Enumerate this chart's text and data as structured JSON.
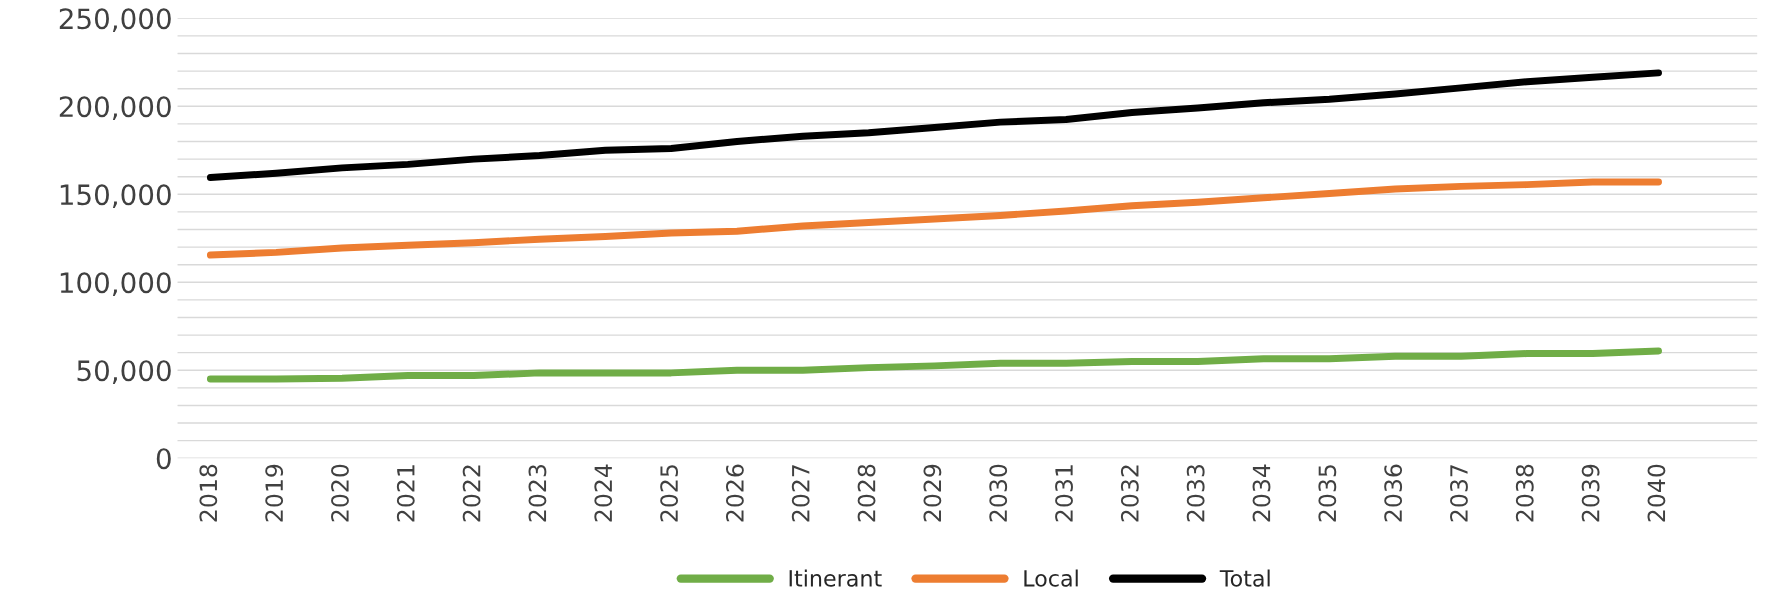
{
  "chart_data": {
    "type": "line",
    "categories": [
      "2018",
      "2019",
      "2020",
      "2021",
      "2022",
      "2023",
      "2024",
      "2025",
      "2026",
      "2027",
      "2028",
      "2029",
      "2030",
      "2031",
      "2032",
      "2033",
      "2034",
      "2035",
      "2036",
      "2037",
      "2038",
      "2039",
      "2040"
    ],
    "series": [
      {
        "name": "Itinerant",
        "color": "#70ad47",
        "values": [
          45000,
          45000,
          45500,
          47000,
          47000,
          48500,
          48500,
          48500,
          50000,
          50000,
          51500,
          52500,
          54000,
          54000,
          55000,
          55000,
          56500,
          56500,
          58000,
          58000,
          59500,
          59500,
          61000
        ]
      },
      {
        "name": "Local",
        "color": "#ed7d31",
        "values": [
          115500,
          117000,
          119500,
          121000,
          122500,
          124500,
          126000,
          128000,
          129000,
          132000,
          134000,
          136000,
          138000,
          140500,
          143500,
          145500,
          148000,
          150500,
          153000,
          154500,
          155500,
          157000,
          157000
        ]
      },
      {
        "name": "Total",
        "color": "#000000",
        "values": [
          159500,
          162000,
          165000,
          167000,
          170000,
          172000,
          175000,
          176000,
          180000,
          183000,
          185000,
          188000,
          191000,
          192500,
          196500,
          199000,
          202000,
          204000,
          207000,
          210500,
          214000,
          216500,
          219000
        ]
      }
    ],
    "ylim": [
      0,
      250000
    ],
    "yticks": [
      0,
      {
        "value": 10000,
        "label": null
      },
      {
        "value": 20000,
        "label": null
      },
      {
        "value": 30000,
        "label": null
      },
      {
        "value": 40000,
        "label": null
      },
      {
        "value": 50000,
        "label": "50,000"
      },
      {
        "value": 60000,
        "label": null
      },
      {
        "value": 70000,
        "label": null
      },
      {
        "value": 80000,
        "label": null
      },
      {
        "value": 90000,
        "label": null
      },
      {
        "value": 100000,
        "label": "100,000"
      },
      {
        "value": 110000,
        "label": null
      },
      {
        "value": 120000,
        "label": null
      },
      {
        "value": 130000,
        "label": null
      },
      {
        "value": 140000,
        "label": null
      },
      {
        "value": 150000,
        "label": "150,000"
      },
      {
        "value": 160000,
        "label": null
      },
      {
        "value": 170000,
        "label": null
      },
      {
        "value": 180000,
        "label": null
      },
      {
        "value": 190000,
        "label": null
      },
      {
        "value": 200000,
        "label": "200,000"
      },
      {
        "value": 210000,
        "label": null
      },
      {
        "value": 220000,
        "label": null
      },
      {
        "value": 230000,
        "label": null
      },
      {
        "value": 240000,
        "label": null
      },
      {
        "value": 250000,
        "label": "250,000"
      }
    ],
    "grid": "y",
    "legend": "bottom",
    "marker": "none",
    "line_style": "solid"
  }
}
